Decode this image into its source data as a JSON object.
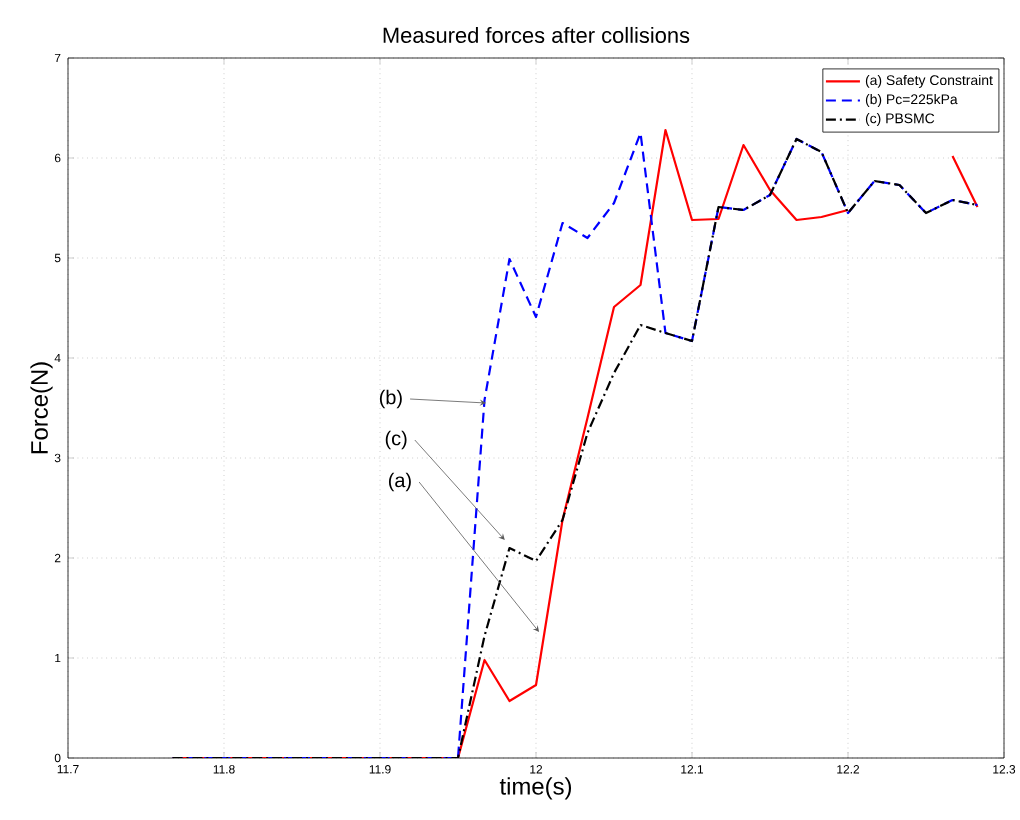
{
  "chart_data": {
    "type": "line",
    "title": "Measured forces after collisions",
    "xlabel": "time(s)",
    "ylabel": "Force(N)",
    "x": [
      11.767,
      11.95,
      11.967,
      11.983,
      12.0,
      12.017,
      12.033,
      12.05,
      12.067,
      12.083,
      12.1,
      12.117,
      12.133,
      12.15,
      12.167,
      12.183,
      12.2,
      12.217,
      12.233,
      12.25,
      12.267,
      12.283
    ],
    "series": [
      {
        "name": "(a) Safety Constraint",
        "color": "#ff0000",
        "line_style": "solid",
        "values": [
          0,
          0,
          0.98,
          0.57,
          0.73,
          2.38,
          3.4,
          4.51,
          4.73,
          6.28,
          5.38,
          5.39,
          6.13,
          5.68,
          5.38,
          5.41,
          5.48,
          null,
          null,
          null,
          6.02,
          5.51
        ]
      },
      {
        "name": "(b) Pc=225kPa",
        "color": "#0000ff",
        "line_style": "dashed",
        "values": [
          0,
          0,
          3.58,
          4.99,
          4.41,
          5.35,
          5.2,
          5.55,
          6.25,
          4.25,
          4.17,
          5.51,
          5.48,
          5.63,
          6.19,
          6.06,
          5.45,
          5.77,
          5.73,
          5.45,
          5.58,
          5.53
        ]
      },
      {
        "name": "(c) PBSMC",
        "color": "#000000",
        "line_style": "dashdot",
        "values": [
          0,
          0,
          1.22,
          2.1,
          1.97,
          2.38,
          3.25,
          3.85,
          4.33,
          4.25,
          4.17,
          5.51,
          5.48,
          5.63,
          6.19,
          6.06,
          5.45,
          5.77,
          5.73,
          5.45,
          5.58,
          5.53
        ]
      }
    ],
    "xlim": [
      11.7,
      12.3
    ],
    "ylim": [
      0,
      7
    ],
    "xticks": [
      11.7,
      11.8,
      11.9,
      12,
      12.1,
      12.2,
      12.3
    ],
    "yticks": [
      0,
      1,
      2,
      3,
      4,
      5,
      6,
      7
    ],
    "grid": true,
    "legend": "top right",
    "marker": "none",
    "annotations": [
      {
        "text": "(b)",
        "x": 11.968,
        "y": 3.55
      },
      {
        "text": "(c)",
        "x": 11.98,
        "y": 2.18
      },
      {
        "text": "(a)",
        "x": 12.002,
        "y": 1.26
      }
    ]
  }
}
